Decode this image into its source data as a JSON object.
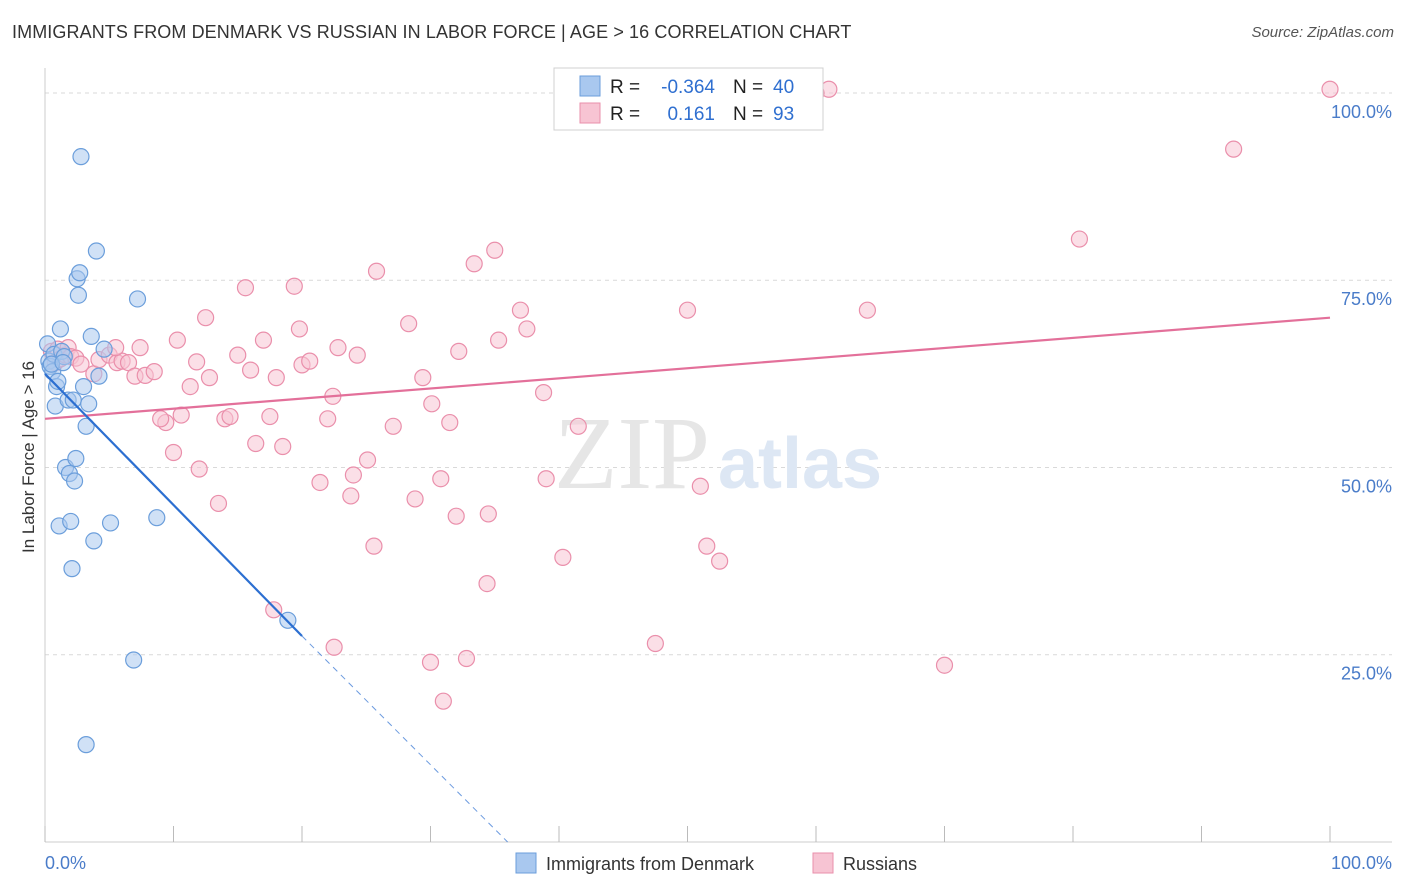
{
  "title": "IMMIGRANTS FROM DENMARK VS RUSSIAN IN LABOR FORCE | AGE > 16 CORRELATION CHART",
  "source": "Source: ZipAtlas.com",
  "watermark": {
    "zip": "ZIP",
    "atlas": "atlas"
  },
  "legend": {
    "r_label": "R =",
    "n_label": "N =",
    "rows": [
      {
        "r": "-0.364",
        "n": "40"
      },
      {
        "r": "0.161",
        "n": "93"
      }
    ]
  },
  "colors": {
    "denmark_fill": "#a9c8ef",
    "denmark_stroke": "#6b9edb",
    "denmark_line": "#2c6fd1",
    "russians_fill": "#f7c4d3",
    "russians_stroke": "#ea8fab",
    "russians_line": "#e3709a",
    "grid": "#d9d9d9",
    "tick_label": "#4a7cc9"
  },
  "chart_data": {
    "type": "scatter",
    "title": "IMMIGRANTS FROM DENMARK VS RUSSIAN IN LABOR FORCE | AGE > 16 CORRELATION CHART",
    "xlabel": "",
    "ylabel": "In Labor Force | Age > 16",
    "xlim": [
      0,
      100
    ],
    "ylim": [
      0,
      102
    ],
    "x_tick_labels": [
      "0.0%",
      "100.0%"
    ],
    "y_ticks": [
      25,
      50,
      75,
      100
    ],
    "y_tick_labels": [
      "25.0%",
      "50.0%",
      "75.0%",
      "100.0%"
    ],
    "grid": "horizontal dashed",
    "legend_position": "bottom-center",
    "series": [
      {
        "name": "Immigrants from Denmark",
        "points": [
          [
            0.2,
            66.5
          ],
          [
            0.3,
            64.2
          ],
          [
            0.4,
            63.5
          ],
          [
            0.6,
            62.8
          ],
          [
            0.7,
            65.1
          ],
          [
            0.8,
            58.2
          ],
          [
            0.9,
            60.8
          ],
          [
            1.0,
            61.5
          ],
          [
            1.1,
            42.2
          ],
          [
            1.2,
            68.5
          ],
          [
            1.3,
            65.5
          ],
          [
            1.5,
            64.8
          ],
          [
            1.6,
            50.0
          ],
          [
            1.8,
            59.0
          ],
          [
            1.9,
            49.2
          ],
          [
            2.0,
            42.8
          ],
          [
            2.1,
            36.5
          ],
          [
            2.2,
            59.0
          ],
          [
            2.3,
            48.2
          ],
          [
            2.4,
            51.2
          ],
          [
            2.5,
            75.2
          ],
          [
            2.6,
            73.0
          ],
          [
            2.7,
            76.0
          ],
          [
            2.8,
            91.5
          ],
          [
            3.0,
            60.8
          ],
          [
            3.2,
            55.5
          ],
          [
            3.4,
            58.5
          ],
          [
            3.6,
            67.5
          ],
          [
            3.8,
            40.2
          ],
          [
            4.0,
            78.9
          ],
          [
            4.2,
            62.2
          ],
          [
            4.6,
            65.8
          ],
          [
            5.1,
            42.6
          ],
          [
            6.9,
            24.3
          ],
          [
            7.2,
            72.5
          ],
          [
            8.7,
            43.3
          ],
          [
            18.9,
            29.6
          ],
          [
            3.2,
            13.0
          ],
          [
            0.5,
            63.8
          ],
          [
            1.4,
            64.0
          ]
        ],
        "trend": {
          "x": [
            0,
            20
          ],
          "y": [
            62.5,
            27.5
          ]
        },
        "trend_extension": {
          "x": [
            20,
            36
          ],
          "y": [
            27.5,
            0
          ]
        }
      },
      {
        "name": "Russians",
        "points": [
          [
            0.5,
            65.5
          ],
          [
            0.8,
            64.0
          ],
          [
            1.0,
            65.8
          ],
          [
            1.2,
            64.5
          ],
          [
            1.6,
            65.0
          ],
          [
            1.8,
            66.0
          ],
          [
            2.0,
            64.8
          ],
          [
            2.4,
            64.6
          ],
          [
            3.8,
            62.5
          ],
          [
            4.2,
            64.4
          ],
          [
            5.0,
            65.0
          ],
          [
            5.6,
            64.0
          ],
          [
            6.0,
            64.2
          ],
          [
            6.5,
            64.0
          ],
          [
            7.0,
            62.2
          ],
          [
            7.4,
            66.0
          ],
          [
            7.8,
            62.3
          ],
          [
            8.5,
            62.8
          ],
          [
            9.4,
            56.0
          ],
          [
            10.0,
            52.0
          ],
          [
            10.6,
            57.0
          ],
          [
            10.3,
            67.0
          ],
          [
            11.3,
            60.8
          ],
          [
            11.8,
            64.1
          ],
          [
            12.0,
            49.8
          ],
          [
            12.5,
            70.0
          ],
          [
            12.8,
            62.0
          ],
          [
            13.5,
            45.2
          ],
          [
            14.0,
            56.5
          ],
          [
            14.4,
            56.8
          ],
          [
            15.0,
            65.0
          ],
          [
            15.6,
            74.0
          ],
          [
            16.0,
            63.0
          ],
          [
            16.4,
            53.2
          ],
          [
            17.0,
            67.0
          ],
          [
            17.5,
            56.8
          ],
          [
            18.0,
            62.0
          ],
          [
            18.5,
            52.8
          ],
          [
            19.4,
            74.2
          ],
          [
            19.8,
            68.5
          ],
          [
            20.0,
            63.7
          ],
          [
            20.6,
            64.2
          ],
          [
            21.4,
            48.0
          ],
          [
            22.0,
            56.5
          ],
          [
            22.4,
            59.5
          ],
          [
            22.8,
            66.0
          ],
          [
            23.8,
            46.2
          ],
          [
            24.0,
            49.0
          ],
          [
            24.3,
            65.0
          ],
          [
            25.1,
            51.0
          ],
          [
            25.6,
            39.5
          ],
          [
            25.8,
            76.2
          ],
          [
            27.1,
            55.5
          ],
          [
            28.3,
            69.2
          ],
          [
            28.8,
            45.8
          ],
          [
            29.4,
            62.0
          ],
          [
            30.1,
            58.5
          ],
          [
            30.8,
            48.5
          ],
          [
            31.5,
            56.0
          ],
          [
            32.0,
            43.5
          ],
          [
            32.2,
            65.5
          ],
          [
            33.4,
            77.2
          ],
          [
            34.4,
            34.5
          ],
          [
            35.0,
            79.0
          ],
          [
            35.3,
            67.0
          ],
          [
            37.0,
            71.0
          ],
          [
            37.5,
            68.5
          ],
          [
            38.8,
            60.0
          ],
          [
            39.0,
            48.5
          ],
          [
            40.3,
            38.0
          ],
          [
            41.5,
            55.5
          ],
          [
            47.5,
            26.5
          ],
          [
            50.0,
            71.0
          ],
          [
            51.0,
            47.5
          ],
          [
            51.5,
            39.5
          ],
          [
            52.5,
            37.5
          ],
          [
            64.0,
            71.0
          ],
          [
            70.0,
            23.6
          ],
          [
            80.5,
            80.5
          ],
          [
            92.5,
            92.5
          ],
          [
            100.0,
            100.5
          ],
          [
            56.5,
            100.5
          ],
          [
            61.0,
            100.5
          ],
          [
            60.0,
            100.0
          ],
          [
            2.8,
            63.8
          ],
          [
            5.5,
            66.0
          ],
          [
            9.0,
            56.5
          ],
          [
            17.8,
            31.0
          ],
          [
            31.0,
            18.8
          ],
          [
            30.0,
            24.0
          ],
          [
            22.5,
            26.0
          ],
          [
            32.8,
            24.5
          ],
          [
            34.5,
            43.8
          ]
        ],
        "trend": {
          "x": [
            0,
            100
          ],
          "y": [
            56.5,
            70.0
          ]
        }
      }
    ]
  }
}
